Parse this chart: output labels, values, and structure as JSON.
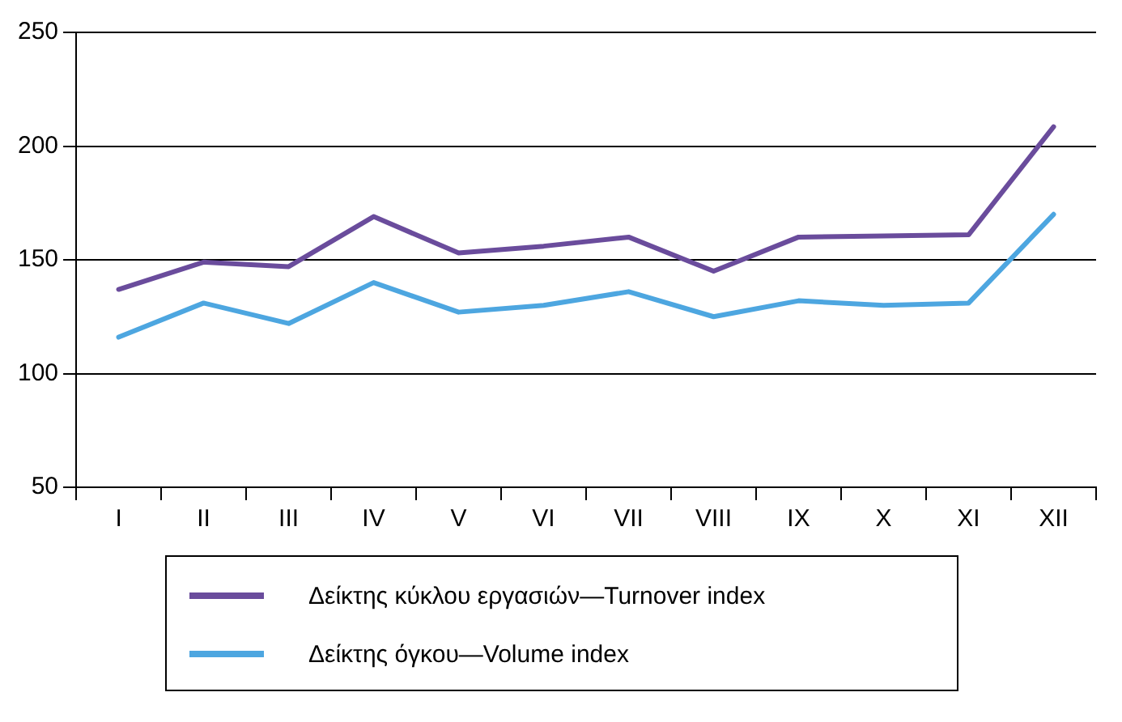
{
  "chart_data": {
    "type": "line",
    "categories": [
      "I",
      "II",
      "III",
      "IV",
      "V",
      "VI",
      "VII",
      "VIII",
      "IX",
      "X",
      "XI",
      "XII"
    ],
    "series": [
      {
        "name": "Δείκτης κύκλου εργασιών—Turnover index",
        "color": "#6a4c9c",
        "values": [
          137,
          149,
          147,
          169,
          153,
          156,
          160,
          145,
          160,
          160.5,
          161,
          208.5
        ]
      },
      {
        "name": "Δείκτης όγκου—Volume index",
        "color": "#4da6e0",
        "values": [
          116,
          131,
          122,
          140,
          127,
          130,
          136,
          125,
          132,
          130,
          131,
          170
        ]
      }
    ],
    "ylim": [
      50,
      250
    ],
    "yticks": [
      50,
      100,
      150,
      200,
      250
    ],
    "grid": "y",
    "legend": "bottom",
    "marker": "none",
    "line_style": "solid"
  }
}
